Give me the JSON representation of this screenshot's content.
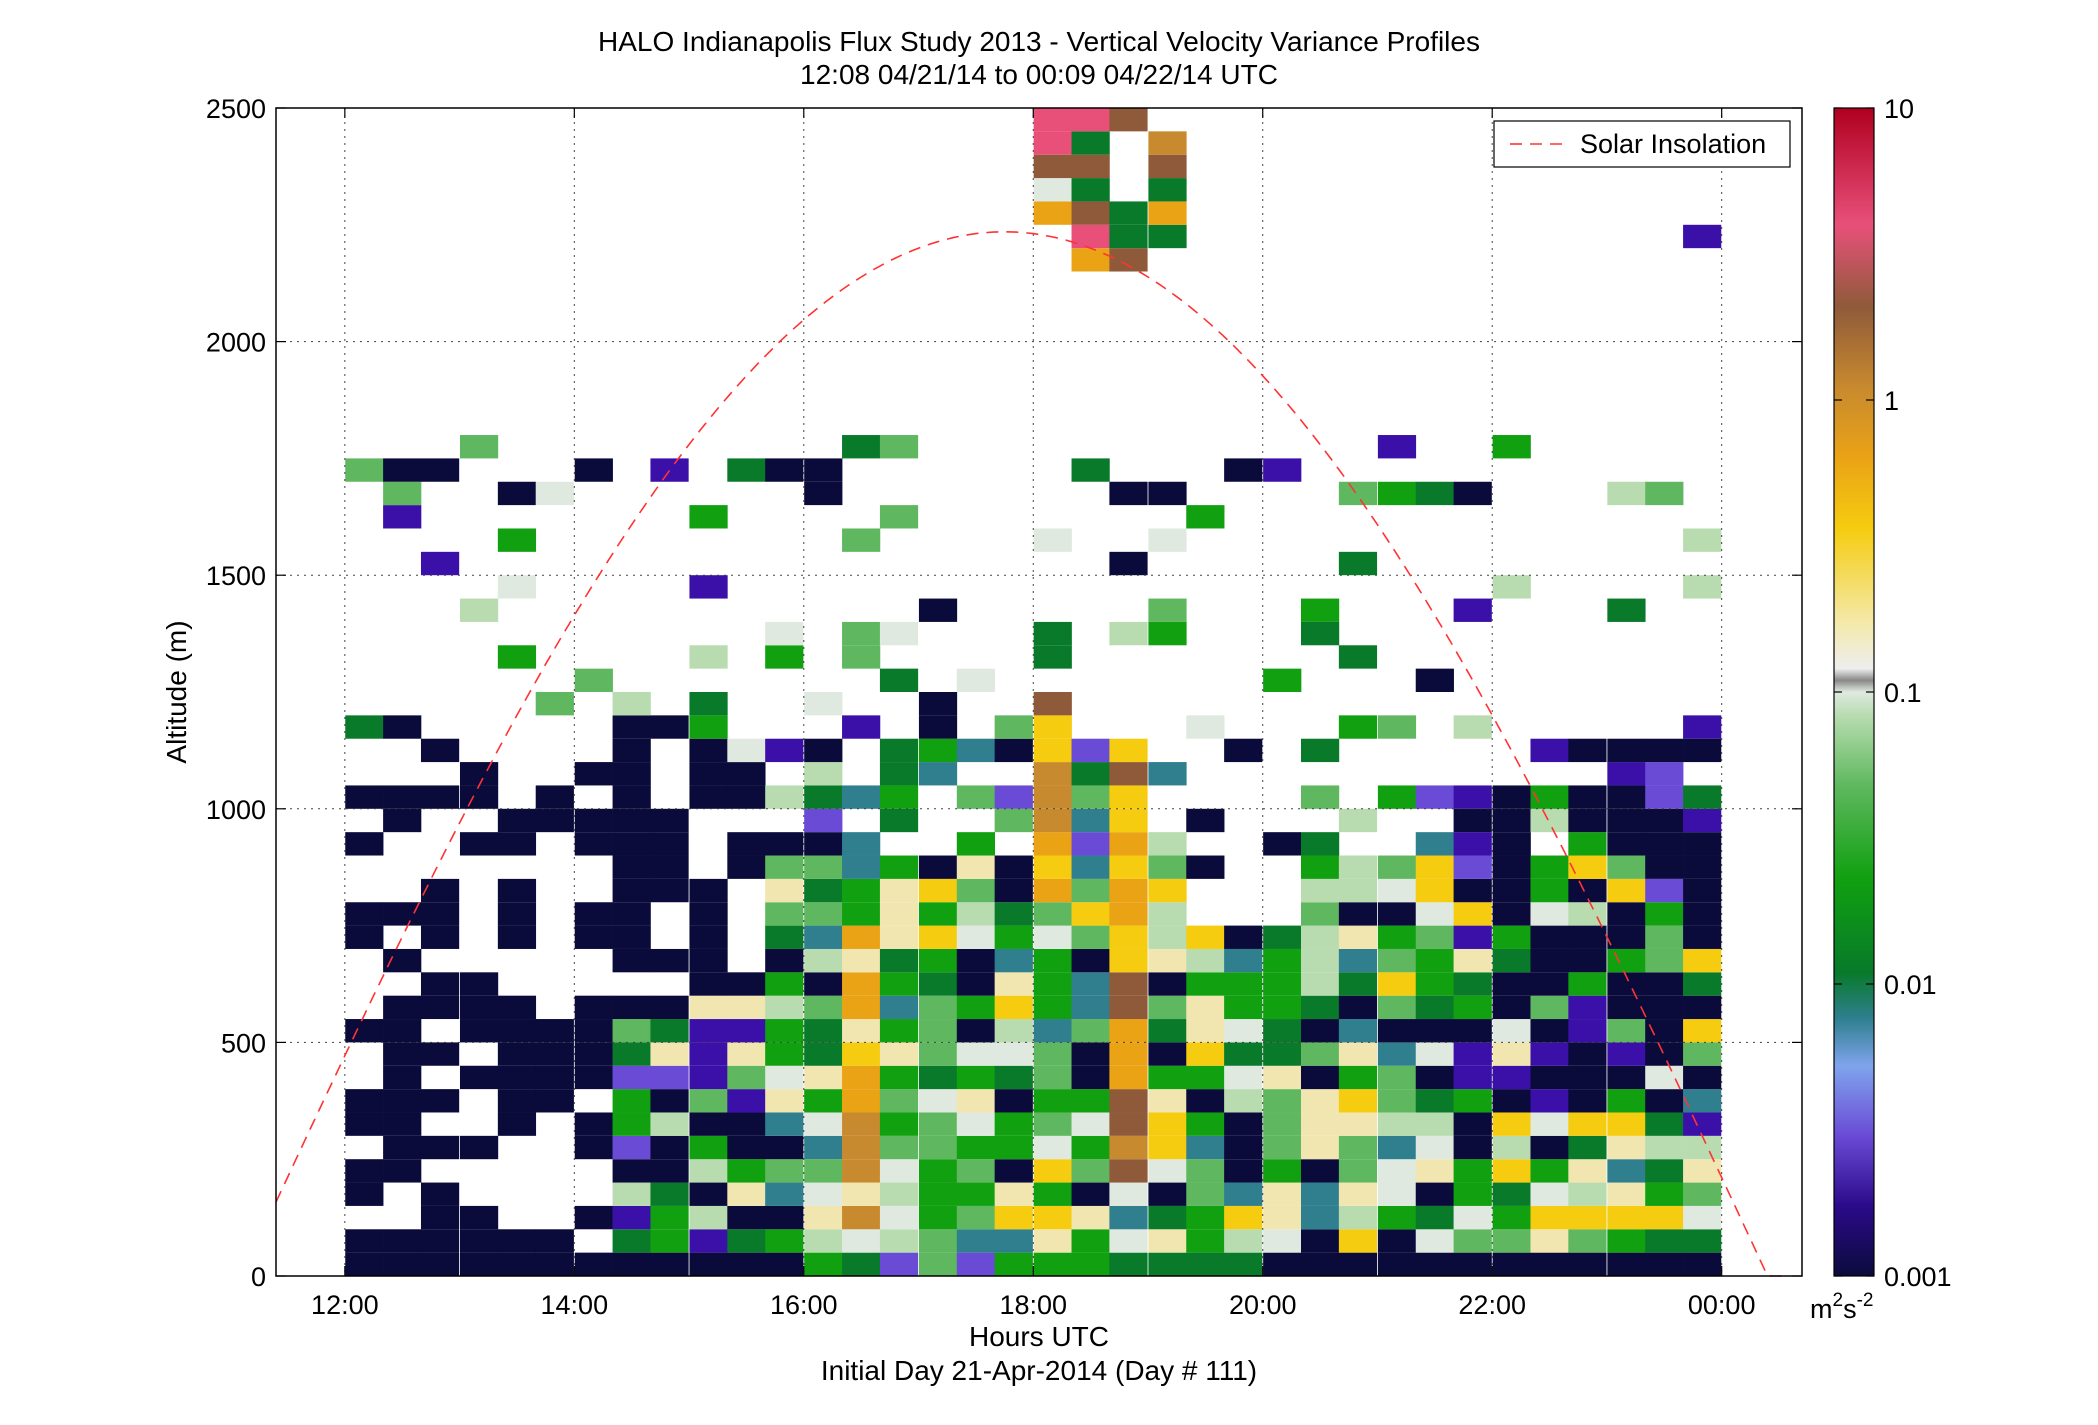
{
  "chart_data": {
    "type": "heatmap",
    "title": "HALO Indianapolis Flux Study 2013 - Vertical Velocity Variance Profiles",
    "subtitle": "12:08 04/21/14 to 00:09 04/22/14  UTC",
    "xlabel": "Hours UTC",
    "xlabel2": "Initial Day 21-Apr-2014 (Day # 111)",
    "ylabel": "Altitude (m)",
    "xlim_hours": [
      11.4,
      24.7
    ],
    "ylim": [
      0,
      2500
    ],
    "x_ticks": [
      {
        "value": 12,
        "label": "12:00"
      },
      {
        "value": 14,
        "label": "14:00"
      },
      {
        "value": 16,
        "label": "16:00"
      },
      {
        "value": 18,
        "label": "18:00"
      },
      {
        "value": 20,
        "label": "20:00"
      },
      {
        "value": 22,
        "label": "22:00"
      },
      {
        "value": 24,
        "label": "00:00"
      }
    ],
    "y_ticks": [
      0,
      500,
      1000,
      1500,
      2000,
      2500
    ],
    "grid": true,
    "colorbar": {
      "scale": "log",
      "range": [
        0.001,
        10
      ],
      "ticks": [
        "10",
        "1",
        "0.1",
        "0.01",
        "0.001"
      ],
      "unit_base": "m",
      "unit_sup1": "2",
      "unit_mid": "s",
      "unit_sup2": "-2"
    },
    "legend": {
      "position": "top-right",
      "entries": [
        "Solar Insolation"
      ]
    },
    "solar_insolation_curve": {
      "peak_hour": 17.6,
      "peak_altitude": 2235,
      "zero_hours": [
        11.1,
        24.4
      ],
      "color": "#ff3333"
    },
    "cell_size": {
      "hours": 0.333,
      "altitude_m": 50
    },
    "profile_start_hours": [
      12.17,
      12.5,
      12.83,
      13.17,
      13.5,
      13.83,
      14.17,
      14.5,
      14.83,
      15.17,
      15.5,
      15.83,
      16.17,
      16.5,
      16.83,
      17.17,
      17.5,
      17.83,
      18.17,
      18.5,
      18.83,
      19.17,
      19.5,
      19.83,
      20.17,
      20.5,
      20.83,
      21.17,
      21.5,
      21.83,
      22.17,
      22.5,
      22.83,
      23.17,
      23.5,
      23.83
    ],
    "altitude_bins_m": "0-2500 every 50 m; per-profile variance values in m^2 s^-2",
    "profiles_highlight": [
      {
        "hour": 16.5,
        "altitude_m": [
          100,
          700
        ],
        "variance_range": [
          0.1,
          0.5
        ]
      },
      {
        "hour": 18.17,
        "altitude_m": [
          800,
          1200
        ],
        "variance_range": [
          0.3,
          1.0
        ]
      },
      {
        "hour": 18.83,
        "altitude_m": [
          200,
          1100
        ],
        "variance_range": [
          0.5,
          2.0
        ]
      },
      {
        "hour": 18.5,
        "altitude_m": [
          2200,
          2500
        ],
        "variance_range": [
          1.0,
          5.0
        ]
      }
    ]
  }
}
